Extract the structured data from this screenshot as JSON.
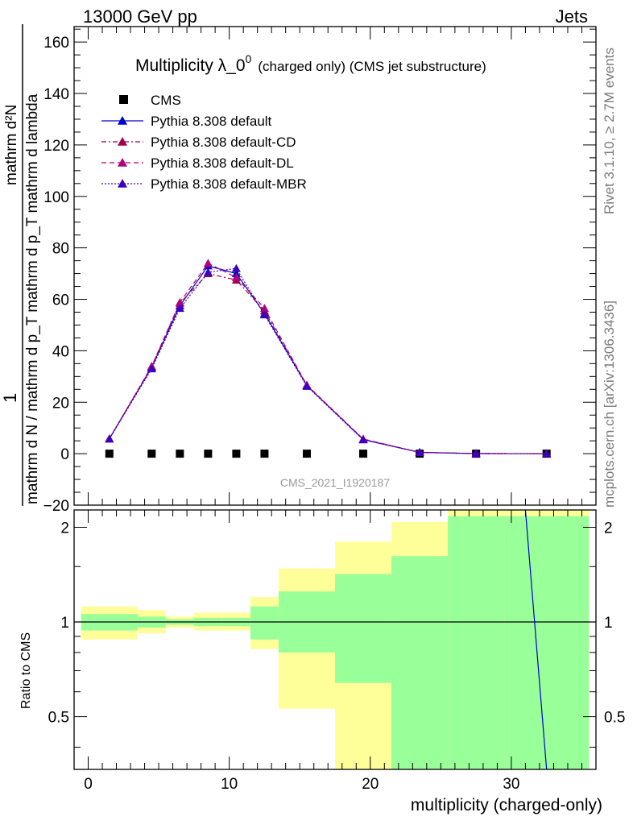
{
  "header": {
    "left": "13000 GeV pp",
    "right": "Jets"
  },
  "side": {
    "rivet": "Rivet 3.1.10, ≥ 2.7M events",
    "mcplots": "mcplots.cern.ch [arXiv:1306.3436]"
  },
  "watermark": "CMS_2021_I1920187",
  "colors": {
    "cms": "#000000",
    "default": "#0000cc",
    "cd": "#a0004a",
    "dl": "#b0007a",
    "mbr": "#3a00c0",
    "band_inner": "#99ff99",
    "band_outer": "#ffff99"
  },
  "chart_data": {
    "type": "scatter",
    "title_main": "Multiplicity λ_0",
    "title_sup": "0",
    "title_rest": "(charged only) (CMS jet substructure)",
    "xlabel": "multiplicity (charged-only)",
    "ylabel_top": "1",
    "ylabel_main": "mathrm d N / mathrm d p_T mathrm d p_T mathrm d lambda",
    "ylabel_top_text": "mathrm d²N",
    "ratio_ylabel": "Ratio to CMS",
    "xlim": [
      -1,
      36
    ],
    "ylim": [
      -20,
      166
    ],
    "ratio_ylim": [
      0.34,
      2.27
    ],
    "ratio_log": true,
    "x_ticks": [
      0,
      10,
      20,
      30
    ],
    "y_ticks": [
      -20,
      0,
      20,
      40,
      60,
      80,
      100,
      120,
      140,
      160
    ],
    "ratio_ticks": [
      0.5,
      1,
      2
    ],
    "x": [
      1.5,
      4.5,
      6.5,
      8.5,
      10.5,
      12.5,
      15.5,
      19.5,
      23.5,
      27.5,
      32.5
    ],
    "bin_edges": [
      -0.5,
      3.5,
      5.5,
      7.5,
      9.5,
      11.5,
      13.5,
      17.5,
      21.5,
      25.5,
      29.5,
      35.5
    ],
    "legend": [
      "CMS",
      "Pythia 8.308 default",
      "Pythia 8.308 default-CD",
      "Pythia 8.308 default-DL",
      "Pythia 8.308 default-MBR"
    ],
    "series": [
      {
        "name": "CMS",
        "values": [
          0,
          0,
          0,
          0,
          0,
          0,
          0,
          0,
          0,
          0,
          0
        ]
      },
      {
        "name": "Pythia 8.308 default",
        "values": [
          5.8,
          33.5,
          57.5,
          73.0,
          70.0,
          54.5,
          26.5,
          5.5,
          0.5,
          0.05,
          0.0
        ]
      },
      {
        "name": "Pythia 8.308 default-CD",
        "values": [
          5.8,
          33.8,
          58.5,
          70.0,
          67.5,
          55.5,
          26.5,
          5.6,
          0.5,
          0.05,
          0.0
        ]
      },
      {
        "name": "Pythia 8.308 default-DL",
        "values": [
          5.8,
          34.0,
          58.8,
          74.0,
          68.5,
          56.5,
          26.7,
          5.7,
          0.5,
          0.05,
          0.0
        ]
      },
      {
        "name": "Pythia 8.308 default-MBR",
        "values": [
          5.7,
          33.0,
          56.5,
          70.5,
          72.0,
          54.0,
          26.2,
          5.4,
          0.5,
          0.05,
          0.0
        ]
      }
    ],
    "band_inner": [
      [
        0.94,
        1.06
      ],
      [
        0.96,
        1.04
      ],
      [
        0.98,
        1.02
      ],
      [
        0.97,
        1.03
      ],
      [
        0.97,
        1.03
      ],
      [
        0.88,
        1.12
      ],
      [
        0.8,
        1.25
      ],
      [
        0.64,
        1.42
      ],
      [
        0.3,
        1.62
      ],
      [
        0.3,
        2.17
      ],
      [
        0.3,
        2.17
      ]
    ],
    "band_outer": [
      [
        0.88,
        1.12
      ],
      [
        0.92,
        1.09
      ],
      [
        0.96,
        1.04
      ],
      [
        0.94,
        1.07
      ],
      [
        0.94,
        1.07
      ],
      [
        0.82,
        1.2
      ],
      [
        0.53,
        1.48
      ],
      [
        0.3,
        1.8
      ],
      [
        0.3,
        2.08
      ],
      [
        0.3,
        2.27
      ],
      [
        0.3,
        2.27
      ]
    ],
    "ratio_line": {
      "x": [
        31.0,
        32.5
      ],
      "y": [
        2.27,
        0.34
      ]
    }
  }
}
